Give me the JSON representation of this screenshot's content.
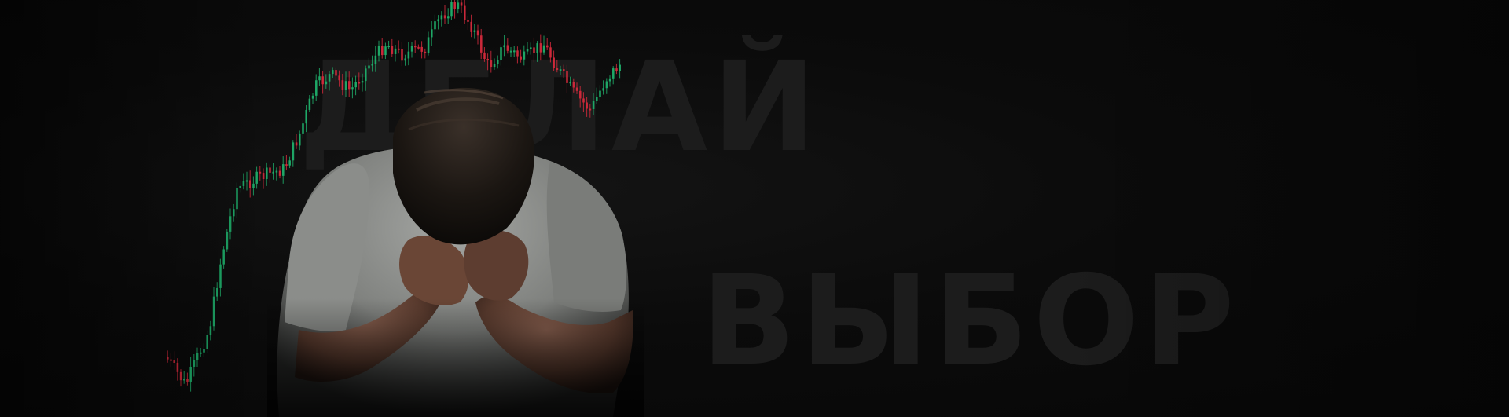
{
  "background": {
    "words": [
      "ДЕЛАЙ",
      "ВЫБОР"
    ],
    "colors": {
      "base": "#0a0a0a",
      "word": "#1c1c1c",
      "candle_up": "#1fae6a",
      "candle_down": "#d42a3c",
      "shirt": "#8f918e",
      "skin": "#6e4a3a",
      "hair": "#1e1915"
    }
  },
  "photo": {
    "subject": "man-holding-head-in-hands"
  }
}
